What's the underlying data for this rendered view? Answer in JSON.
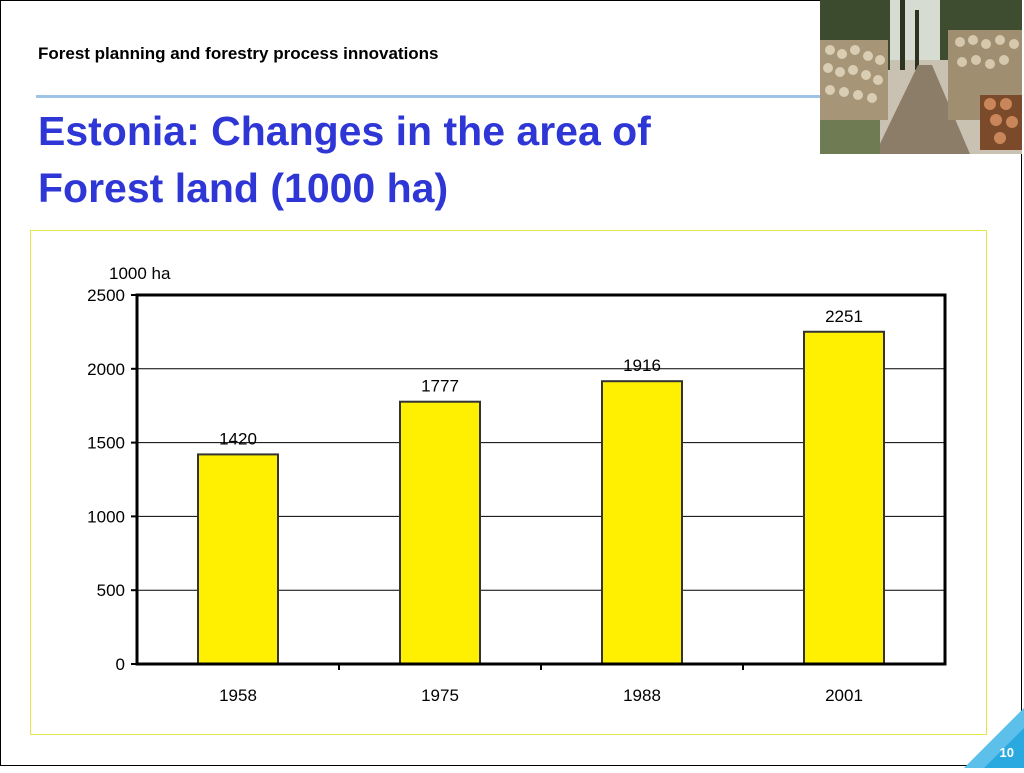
{
  "slide": {
    "header": "Forest planning and forestry process innovations",
    "title_line1": "Estonia: Changes in the area of",
    "title_line2": "Forest land (1000 ha)",
    "page_number": "10",
    "accent_color": "#2e36d6",
    "rule_color": "#9ec3e8"
  },
  "chart_data": {
    "type": "bar",
    "categories": [
      "1958",
      "1975",
      "1988",
      "2001"
    ],
    "values": [
      1420,
      1777,
      1916,
      2251
    ],
    "data_labels": [
      "1420",
      "1777",
      "1916",
      "2251"
    ],
    "ylabel": "1000 ha",
    "ylim": [
      0,
      2500
    ],
    "yticks": [
      0,
      500,
      1000,
      1500,
      2000,
      2500
    ],
    "bar_color": "#ffef00",
    "grid": true
  }
}
